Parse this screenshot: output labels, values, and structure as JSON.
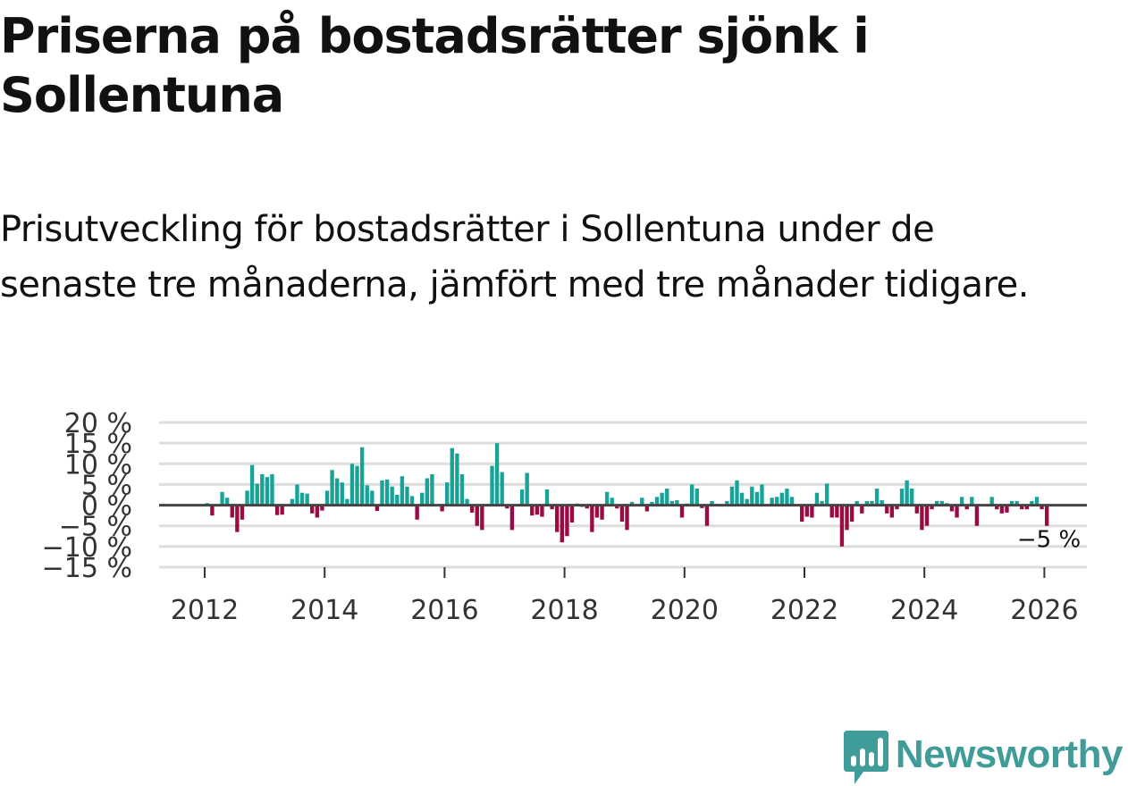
{
  "title": "Priserna på bostadsrätter sjönk i Sollentuna",
  "subtitle": "Prisutveckling för bostadsrätter i Sollentuna under de senaste tre månaderna, jämfört med tre månader tidigare.",
  "brand": {
    "name": "Newsworthy"
  },
  "colors": {
    "positive": "#17a398",
    "negative": "#9b0a42",
    "grid": "#dddddd",
    "zero": "#444444",
    "brand": "#3f9c98"
  },
  "chart_data": {
    "type": "bar",
    "title": "Priserna på bostadsrätter sjönk i Sollentuna",
    "xlabel": "",
    "ylabel": "",
    "ylim": [
      -15,
      20
    ],
    "yticks": [
      20,
      15,
      10,
      5,
      0,
      -5,
      -10,
      -15
    ],
    "ytick_labels": [
      "20 %",
      "15 %",
      "10 %",
      "5 %",
      "0 %",
      "−5 %",
      "−10 %",
      "−15 %"
    ],
    "xticks": [
      2012,
      2014,
      2016,
      2018,
      2020,
      2022,
      2024,
      2026
    ],
    "xtick_labels": [
      "2012",
      "2014",
      "2016",
      "2018",
      "2020",
      "2022",
      "2024",
      "2026"
    ],
    "x_start": "2012-01",
    "frequency": "monthly",
    "annotation": {
      "text": "−5 %",
      "value": -5
    },
    "values": [
      0.5,
      -2.5,
      0.2,
      3.2,
      1.8,
      -3.0,
      -6.5,
      -3.5,
      3.5,
      9.7,
      5.2,
      7.5,
      6.8,
      7.5,
      -2.4,
      -2.3,
      0.1,
      1.5,
      5.0,
      3.0,
      2.8,
      -2.0,
      -3.0,
      -1.3,
      3.5,
      8.5,
      6.5,
      5.5,
      1.5,
      10.0,
      9.5,
      14.0,
      4.8,
      3.5,
      -1.4,
      6.0,
      6.2,
      4.5,
      2.5,
      7.0,
      4.5,
      2.2,
      -3.5,
      3.0,
      6.5,
      7.5,
      -0.3,
      -1.5,
      5.5,
      13.8,
      12.5,
      7.5,
      1.5,
      -1.8,
      -5.0,
      -6.0,
      0.3,
      9.5,
      15.0,
      8.0,
      -0.8,
      -6.0,
      -0.3,
      3.8,
      7.8,
      -2.5,
      -2.3,
      -2.8,
      3.8,
      -1.0,
      -6.5,
      -9.0,
      -7.5,
      -4.2,
      0.4,
      -0.4,
      -0.8,
      -6.5,
      -3.0,
      -3.5,
      3.2,
      1.8,
      -0.8,
      -4.0,
      -6.0,
      0.8,
      -0.3,
      1.8,
      -1.5,
      0.8,
      2.0,
      3.0,
      4.0,
      1.0,
      1.2,
      -3.0,
      0.4,
      5.0,
      4.0,
      -0.7,
      -5.0,
      1.0,
      0.3,
      0.1,
      1.0,
      4.5,
      6.0,
      3.0,
      1.5,
      4.5,
      3.2,
      5.0,
      -0.3,
      1.8,
      2.0,
      3.0,
      4.0,
      2.0,
      0.2,
      -4.0,
      -2.8,
      -3.0,
      3.0,
      1.0,
      5.2,
      -3.0,
      -3.0,
      -10.0,
      -6.0,
      -4.0,
      1.0,
      -2.0,
      1.0,
      1.0,
      4.0,
      1.2,
      -2.0,
      -3.0,
      -1.0,
      4.0,
      6.0,
      4.0,
      -2.0,
      -6.0,
      -5.0,
      -1.0,
      1.0,
      1.0,
      0.5,
      -1.5,
      -3.0,
      2.0,
      -1.0,
      2.0,
      -5.0,
      0.2,
      0.2,
      2.0,
      -1.0,
      -2.0,
      -1.8,
      1.0,
      1.0,
      -1.0,
      -1.0,
      1.0,
      2.0,
      -1.0,
      -5.0
    ]
  }
}
